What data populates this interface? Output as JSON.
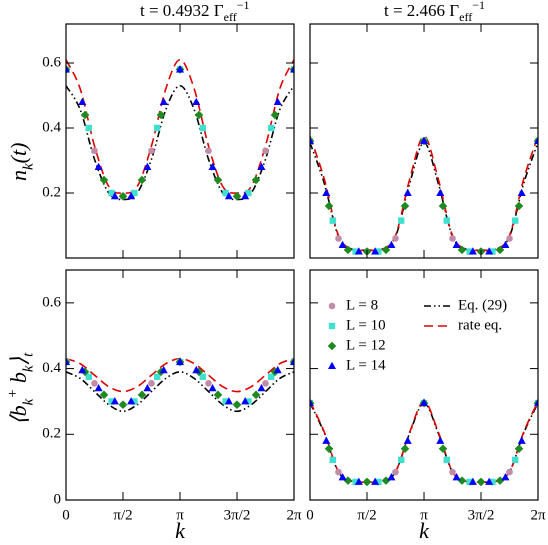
{
  "chart_data": [
    {
      "type": "line",
      "title": [
        {
          "text": "t = 0.4932 Γ"
        },
        {
          "text": "eff",
          "shift": "sub"
        },
        {
          "text": "−1",
          "shift": "sup"
        }
      ],
      "ylabel": [
        {
          "text": "n"
        },
        {
          "text": "k",
          "shift": "sub"
        },
        {
          "text": "(t)"
        }
      ],
      "xlim": [
        0,
        6.283
      ],
      "ylim": [
        0,
        0.72
      ],
      "xticks": [
        0,
        1.571,
        3.142,
        4.712,
        6.283
      ],
      "xtick_labels": false,
      "yticks": [
        0.2,
        0.4,
        0.6
      ],
      "ytick_labels": true,
      "series": [
        {
          "color": "#c08ca8",
          "marker": "circle",
          "x": [
            0,
            0.785,
            1.571,
            2.356,
            3.142,
            3.927,
            4.712,
            5.498,
            6.283
          ],
          "values": [
            0.58,
            0.33,
            0.19,
            0.33,
            0.58,
            0.33,
            0.19,
            0.33,
            0.58
          ]
        },
        {
          "color": "#40e0d0",
          "marker": "square",
          "x": [
            0,
            0.628,
            1.257,
            1.885,
            2.513,
            3.142,
            3.77,
            4.398,
            5.027,
            5.655,
            6.283
          ],
          "values": [
            0.58,
            0.4,
            0.2,
            0.2,
            0.4,
            0.58,
            0.4,
            0.2,
            0.2,
            0.4,
            0.58
          ]
        },
        {
          "color": "#1f8a1f",
          "marker": "diamond",
          "x": [
            0,
            0.524,
            1.047,
            1.571,
            2.094,
            2.618,
            3.142,
            3.665,
            4.189,
            4.712,
            5.236,
            5.76,
            6.283
          ],
          "values": [
            0.58,
            0.44,
            0.24,
            0.19,
            0.24,
            0.44,
            0.58,
            0.44,
            0.24,
            0.19,
            0.24,
            0.44,
            0.58
          ]
        },
        {
          "color": "#0000ff",
          "marker": "triangle",
          "x": [
            0,
            0.449,
            0.898,
            1.346,
            1.795,
            2.244,
            2.693,
            3.142,
            3.59,
            4.039,
            4.488,
            4.937,
            5.386,
            5.834,
            6.283
          ],
          "values": [
            0.58,
            0.48,
            0.28,
            0.19,
            0.19,
            0.28,
            0.48,
            0.58,
            0.48,
            0.28,
            0.19,
            0.19,
            0.28,
            0.48,
            0.58
          ]
        },
        {
          "color": "#000000",
          "line": "dash-dot",
          "x": [
            0,
            0.393,
            0.785,
            1.178,
            1.571,
            1.963,
            2.356,
            2.749,
            3.142,
            3.534,
            3.927,
            4.32,
            4.712,
            5.105,
            5.498,
            5.89,
            6.283
          ],
          "values": [
            0.53,
            0.456,
            0.304,
            0.2,
            0.18,
            0.2,
            0.304,
            0.456,
            0.53,
            0.456,
            0.304,
            0.2,
            0.18,
            0.2,
            0.304,
            0.456,
            0.53
          ]
        },
        {
          "color": "#e00000",
          "line": "dashed",
          "x": [
            0,
            0.393,
            0.785,
            1.178,
            1.571,
            1.963,
            2.356,
            2.749,
            3.142,
            3.534,
            3.927,
            4.32,
            4.712,
            5.105,
            5.498,
            5.89,
            6.283
          ],
          "values": [
            0.61,
            0.52,
            0.345,
            0.22,
            0.2,
            0.22,
            0.345,
            0.52,
            0.61,
            0.52,
            0.345,
            0.22,
            0.2,
            0.22,
            0.345,
            0.52,
            0.61
          ]
        }
      ]
    },
    {
      "type": "line",
      "title": [
        {
          "text": "t = 2.466 Γ"
        },
        {
          "text": "eff",
          "shift": "sub"
        },
        {
          "text": "−1",
          "shift": "sup"
        }
      ],
      "xlim": [
        0,
        6.283
      ],
      "ylim": [
        0,
        0.72
      ],
      "xticks": [
        0,
        1.571,
        3.142,
        4.712,
        6.283
      ],
      "xtick_labels": false,
      "yticks": [
        0.2,
        0.4,
        0.6
      ],
      "ytick_labels": false,
      "series": [
        {
          "color": "#c08ca8",
          "marker": "circle",
          "x": [
            0,
            0.785,
            1.571,
            2.356,
            3.142,
            3.927,
            4.712,
            5.498,
            6.283
          ],
          "values": [
            0.36,
            0.06,
            0.02,
            0.06,
            0.36,
            0.06,
            0.02,
            0.06,
            0.36
          ]
        },
        {
          "color": "#40e0d0",
          "marker": "square",
          "x": [
            0,
            0.628,
            1.257,
            1.885,
            2.513,
            3.142,
            3.77,
            4.398,
            5.027,
            5.655,
            6.283
          ],
          "values": [
            0.36,
            0.115,
            0.02,
            0.02,
            0.115,
            0.36,
            0.115,
            0.02,
            0.02,
            0.115,
            0.36
          ]
        },
        {
          "color": "#1f8a1f",
          "marker": "diamond",
          "x": [
            0,
            0.524,
            1.047,
            1.571,
            2.094,
            2.618,
            3.142,
            3.665,
            4.189,
            4.712,
            5.236,
            5.76,
            6.283
          ],
          "values": [
            0.36,
            0.16,
            0.025,
            0.02,
            0.025,
            0.16,
            0.36,
            0.16,
            0.025,
            0.02,
            0.025,
            0.16,
            0.36
          ]
        },
        {
          "color": "#0000ff",
          "marker": "triangle",
          "x": [
            0,
            0.449,
            0.898,
            1.346,
            1.795,
            2.244,
            2.693,
            3.142,
            3.59,
            4.039,
            4.488,
            4.937,
            5.386,
            5.834,
            6.283
          ],
          "values": [
            0.36,
            0.2,
            0.04,
            0.02,
            0.02,
            0.04,
            0.2,
            0.36,
            0.2,
            0.04,
            0.02,
            0.02,
            0.04,
            0.2,
            0.36
          ]
        },
        {
          "color": "#000000",
          "line": "dash-dot",
          "x": [
            0,
            0.393,
            0.785,
            1.178,
            1.571,
            1.963,
            2.356,
            2.749,
            3.142,
            3.534,
            3.927,
            4.32,
            4.712,
            5.105,
            5.498,
            5.89,
            6.283
          ],
          "values": [
            0.355,
            0.23,
            0.066,
            0.026,
            0.025,
            0.026,
            0.066,
            0.23,
            0.355,
            0.23,
            0.066,
            0.026,
            0.025,
            0.026,
            0.066,
            0.23,
            0.355
          ]
        },
        {
          "color": "#e00000",
          "line": "dashed",
          "x": [
            0,
            0.393,
            0.785,
            1.178,
            1.571,
            1.963,
            2.356,
            2.749,
            3.142,
            3.534,
            3.927,
            4.32,
            4.712,
            5.105,
            5.498,
            5.89,
            6.283
          ],
          "values": [
            0.375,
            0.243,
            0.069,
            0.026,
            0.025,
            0.026,
            0.069,
            0.243,
            0.375,
            0.243,
            0.069,
            0.026,
            0.025,
            0.026,
            0.069,
            0.243,
            0.375
          ]
        }
      ]
    },
    {
      "type": "line",
      "ylabel": [
        {
          "text": "⟨b"
        },
        {
          "text": "k",
          "shift": "sub"
        },
        {
          "text": "+",
          "shift": "sup"
        },
        {
          "text": " b"
        },
        {
          "text": "k",
          "shift": "sub"
        },
        {
          "text": "⟩"
        },
        {
          "text": "t",
          "shift": "sub"
        }
      ],
      "xlabel": "k",
      "xlim": [
        0,
        6.283
      ],
      "ylim": [
        0,
        0.7
      ],
      "xticks": [
        0,
        {
          "value": 1.571,
          "label": "π/2"
        },
        {
          "value": 3.142,
          "label": "π"
        },
        {
          "value": 4.712,
          "label": "3π/2"
        },
        {
          "value": 6.283,
          "label": "2π"
        }
      ],
      "xtick_labels": true,
      "yticks": [
        0,
        0.2,
        0.4,
        0.6
      ],
      "ytick_labels": true,
      "series": [
        {
          "color": "#c08ca8",
          "marker": "circle",
          "x": [
            0,
            0.785,
            1.571,
            2.356,
            3.142,
            3.927,
            4.712,
            5.498,
            6.283
          ],
          "values": [
            0.42,
            0.355,
            0.29,
            0.355,
            0.42,
            0.355,
            0.29,
            0.355,
            0.42
          ]
        },
        {
          "color": "#40e0d0",
          "marker": "square",
          "x": [
            0,
            0.628,
            1.257,
            1.885,
            2.513,
            3.142,
            3.77,
            4.398,
            5.027,
            5.655,
            6.283
          ],
          "values": [
            0.42,
            0.375,
            0.3,
            0.3,
            0.375,
            0.42,
            0.375,
            0.3,
            0.3,
            0.375,
            0.42
          ]
        },
        {
          "color": "#1f8a1f",
          "marker": "diamond",
          "x": [
            0,
            0.524,
            1.047,
            1.571,
            2.094,
            2.618,
            3.142,
            3.665,
            4.189,
            4.712,
            5.236,
            5.76,
            6.283
          ],
          "values": [
            0.42,
            0.39,
            0.32,
            0.29,
            0.32,
            0.39,
            0.42,
            0.39,
            0.32,
            0.29,
            0.32,
            0.39,
            0.42
          ]
        },
        {
          "color": "#0000ff",
          "marker": "triangle",
          "x": [
            0,
            0.449,
            0.898,
            1.346,
            1.795,
            2.244,
            2.693,
            3.142,
            3.59,
            4.039,
            4.488,
            4.937,
            5.386,
            5.834,
            6.283
          ],
          "values": [
            0.42,
            0.395,
            0.34,
            0.3,
            0.3,
            0.34,
            0.395,
            0.42,
            0.395,
            0.34,
            0.3,
            0.3,
            0.34,
            0.395,
            0.42
          ]
        },
        {
          "color": "#000000",
          "line": "dash-dot",
          "x": [
            0,
            0.393,
            0.785,
            1.178,
            1.571,
            1.963,
            2.356,
            2.749,
            3.142,
            3.534,
            3.927,
            4.32,
            4.712,
            5.105,
            5.498,
            5.89,
            6.283
          ],
          "values": [
            0.39,
            0.37,
            0.33,
            0.29,
            0.27,
            0.29,
            0.33,
            0.37,
            0.39,
            0.37,
            0.33,
            0.29,
            0.27,
            0.29,
            0.33,
            0.37,
            0.39
          ]
        },
        {
          "color": "#e00000",
          "line": "dashed",
          "x": [
            0,
            0.393,
            0.785,
            1.178,
            1.571,
            1.963,
            2.356,
            2.749,
            3.142,
            3.534,
            3.927,
            4.32,
            4.712,
            5.105,
            5.498,
            5.89,
            6.283
          ],
          "values": [
            0.43,
            0.415,
            0.38,
            0.345,
            0.33,
            0.345,
            0.38,
            0.415,
            0.43,
            0.415,
            0.38,
            0.345,
            0.33,
            0.345,
            0.38,
            0.415,
            0.43
          ]
        }
      ]
    },
    {
      "type": "line",
      "xlabel": "k",
      "xlim": [
        0,
        6.283
      ],
      "ylim": [
        0,
        0.7
      ],
      "xticks": [
        0,
        {
          "value": 1.571,
          "label": "π/2"
        },
        {
          "value": 3.142,
          "label": "π"
        },
        {
          "value": 4.712,
          "label": "3π/2"
        },
        {
          "value": 6.283,
          "label": "2π"
        }
      ],
      "xtick_labels": true,
      "yticks": [
        0,
        0.2,
        0.4,
        0.6
      ],
      "ytick_labels": false,
      "legend": "upper left",
      "series": [
        {
          "name": "L = 8",
          "color": "#c08ca8",
          "marker": "circle",
          "x": [
            0,
            0.785,
            1.571,
            2.356,
            3.142,
            3.927,
            4.712,
            5.498,
            6.283
          ],
          "values": [
            0.295,
            0.085,
            0.055,
            0.085,
            0.295,
            0.085,
            0.055,
            0.085,
            0.295
          ]
        },
        {
          "name": "L = 10",
          "color": "#40e0d0",
          "marker": "square",
          "x": [
            0,
            0.628,
            1.257,
            1.885,
            2.513,
            3.142,
            3.77,
            4.398,
            5.027,
            5.655,
            6.283
          ],
          "values": [
            0.295,
            0.122,
            0.055,
            0.055,
            0.122,
            0.295,
            0.122,
            0.055,
            0.055,
            0.122,
            0.295
          ]
        },
        {
          "name": "L = 12",
          "color": "#1f8a1f",
          "marker": "diamond",
          "x": [
            0,
            0.524,
            1.047,
            1.571,
            2.094,
            2.618,
            3.142,
            3.665,
            4.189,
            4.712,
            5.236,
            5.76,
            6.283
          ],
          "values": [
            0.295,
            0.156,
            0.059,
            0.055,
            0.059,
            0.156,
            0.295,
            0.156,
            0.059,
            0.055,
            0.059,
            0.156,
            0.295
          ]
        },
        {
          "name": "L = 14",
          "color": "#0000ff",
          "marker": "triangle",
          "x": [
            0,
            0.449,
            0.898,
            1.346,
            1.795,
            2.244,
            2.693,
            3.142,
            3.59,
            4.039,
            4.488,
            4.937,
            5.386,
            5.834,
            6.283
          ],
          "values": [
            0.295,
            0.18,
            0.069,
            0.055,
            0.055,
            0.069,
            0.18,
            0.295,
            0.18,
            0.069,
            0.055,
            0.055,
            0.069,
            0.18,
            0.295
          ]
        },
        {
          "name": "Eq. (29)",
          "color": "#000000",
          "line": "dash-dot",
          "x": [
            0,
            0.393,
            0.785,
            1.178,
            1.571,
            1.963,
            2.356,
            2.749,
            3.142,
            3.534,
            3.927,
            4.32,
            4.712,
            5.105,
            5.498,
            5.89,
            6.283
          ],
          "values": [
            0.295,
            0.204,
            0.085,
            0.056,
            0.055,
            0.056,
            0.085,
            0.204,
            0.295,
            0.204,
            0.085,
            0.056,
            0.055,
            0.056,
            0.085,
            0.204,
            0.295
          ]
        },
        {
          "name": "rate eq.",
          "color": "#e00000",
          "line": "dashed",
          "x": [
            0,
            0.393,
            0.785,
            1.178,
            1.571,
            1.963,
            2.356,
            2.749,
            3.142,
            3.534,
            3.927,
            4.32,
            4.712,
            5.105,
            5.498,
            5.89,
            6.283
          ],
          "values": [
            0.3,
            0.207,
            0.086,
            0.056,
            0.055,
            0.056,
            0.086,
            0.207,
            0.3,
            0.207,
            0.086,
            0.056,
            0.055,
            0.056,
            0.086,
            0.207,
            0.3
          ]
        }
      ]
    }
  ]
}
